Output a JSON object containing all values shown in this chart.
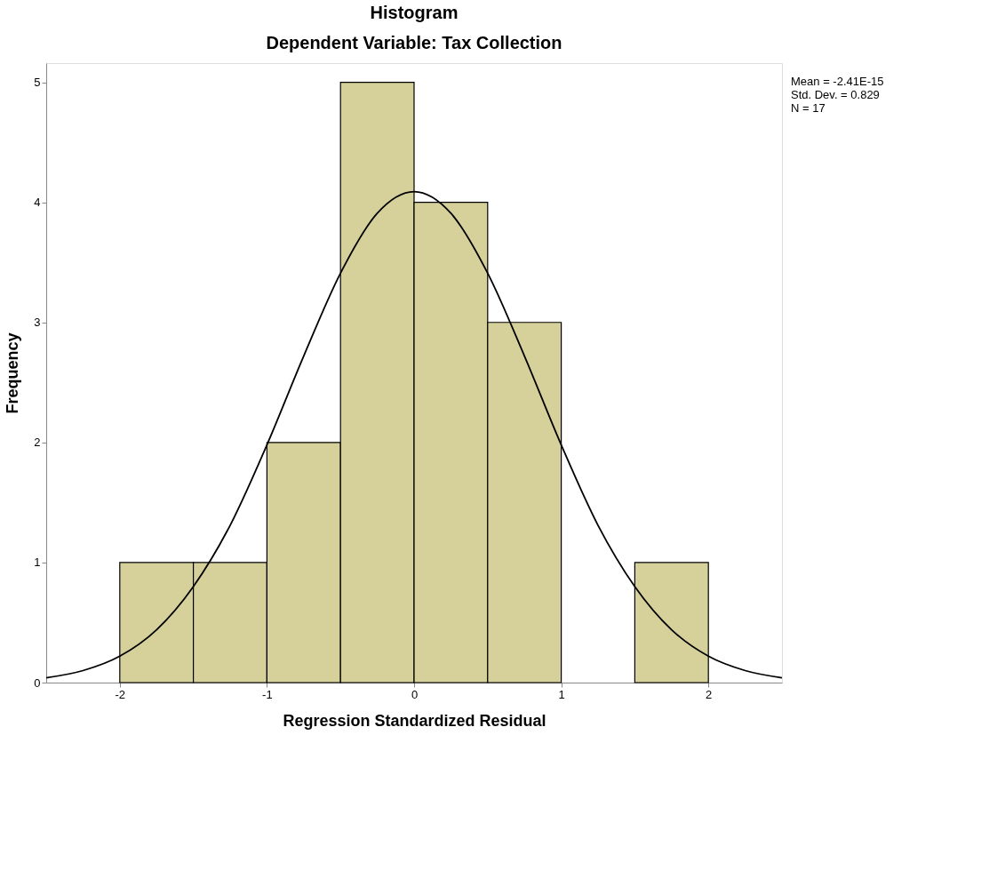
{
  "chart_data": {
    "type": "histogram",
    "title": "Histogram",
    "subtitle": "Dependent Variable: Tax Collection",
    "xlabel": "Regression Standardized Residual",
    "ylabel": "Frequency",
    "bins": [
      -2,
      -1.5,
      -1,
      -0.5,
      0,
      0.5,
      1,
      1.5,
      2
    ],
    "values": [
      1,
      1,
      2,
      5,
      4,
      3,
      0,
      1
    ],
    "color": "#d6d19a",
    "series": [
      {
        "type": "line",
        "color": "#000000",
        "x": [
          -2.5,
          -2.25,
          -2,
          -1.75,
          -1.5,
          -1.25,
          -1,
          -0.75,
          -0.5,
          -0.25,
          0,
          0.25,
          0.5,
          0.75,
          1,
          1.25,
          1.5,
          1.75,
          2,
          2.25,
          2.5
        ],
        "values": [
          0.04,
          0.1,
          0.22,
          0.44,
          0.8,
          1.31,
          1.98,
          2.72,
          3.41,
          3.91,
          4.09,
          3.91,
          3.41,
          2.72,
          1.98,
          1.31,
          0.8,
          0.44,
          0.22,
          0.1,
          0.04
        ]
      }
    ],
    "xlim": [
      -2.5,
      2.5
    ],
    "ylim": [
      0,
      5.16
    ],
    "xticks": [
      -2,
      -1,
      0,
      1,
      2
    ],
    "yticks": [
      0,
      1,
      2,
      3,
      4,
      5
    ],
    "grid": false,
    "annotations": [
      "Mean = -2.41E-15",
      "Std. Dev. = 0.829",
      "N = 17"
    ]
  }
}
